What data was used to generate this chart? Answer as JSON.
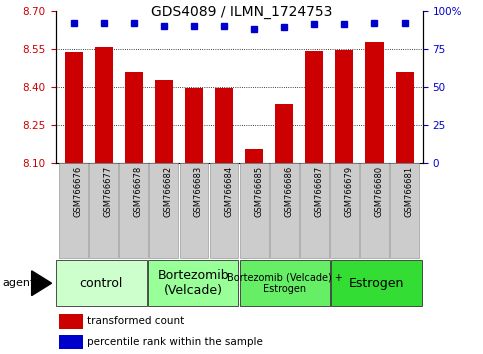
{
  "title": "GDS4089 / ILMN_1724753",
  "samples": [
    "GSM766676",
    "GSM766677",
    "GSM766678",
    "GSM766682",
    "GSM766683",
    "GSM766684",
    "GSM766685",
    "GSM766686",
    "GSM766687",
    "GSM766679",
    "GSM766680",
    "GSM766681"
  ],
  "bar_values": [
    8.535,
    8.555,
    8.46,
    8.425,
    8.395,
    8.395,
    8.155,
    8.33,
    8.54,
    8.545,
    8.575,
    8.46
  ],
  "percentile_values": [
    92,
    92,
    92,
    90,
    90,
    90,
    88,
    89,
    91,
    91,
    92,
    92
  ],
  "ylim_left": [
    8.1,
    8.7
  ],
  "ylim_right": [
    0,
    100
  ],
  "yticks_left": [
    8.1,
    8.25,
    8.4,
    8.55,
    8.7
  ],
  "yticks_right": [
    0,
    25,
    50,
    75,
    100
  ],
  "bar_color": "#cc0000",
  "dot_color": "#0000cc",
  "groups": [
    {
      "label": "control",
      "start": 0,
      "end": 3,
      "color": "#ccffcc",
      "fontsize": 9
    },
    {
      "label": "Bortezomib\n(Velcade)",
      "start": 3,
      "end": 6,
      "color": "#99ff99",
      "fontsize": 9
    },
    {
      "label": "Bortezomib (Velcade) +\nEstrogen",
      "start": 6,
      "end": 9,
      "color": "#66ee66",
      "fontsize": 7
    },
    {
      "label": "Estrogen",
      "start": 9,
      "end": 12,
      "color": "#33dd33",
      "fontsize": 9
    }
  ],
  "legend_labels": [
    "transformed count",
    "percentile rank within the sample"
  ],
  "tick_color_left": "#cc0000",
  "tick_color_right": "#0000cc",
  "xtick_bg_color": "#cccccc",
  "xtick_border_color": "#888888"
}
